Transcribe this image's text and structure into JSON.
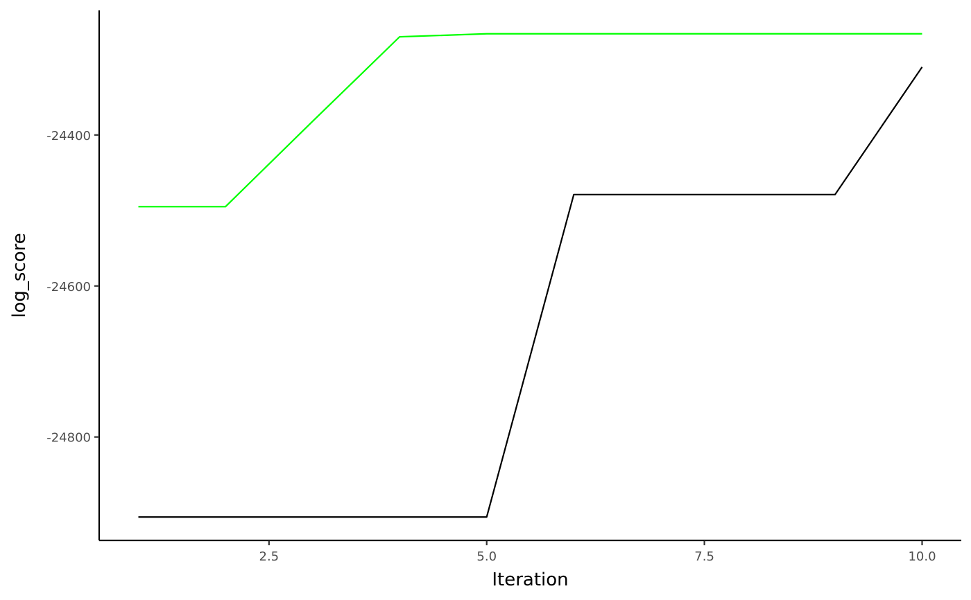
{
  "chart_data": {
    "type": "line",
    "title": "",
    "xlabel": "Iteration",
    "ylabel": "log_score",
    "xlim": [
      0.55,
      10.45
    ],
    "ylim": [
      -24937,
      -24235
    ],
    "x_ticks": [
      2.5,
      5.0,
      7.5,
      10.0
    ],
    "x_tick_labels": [
      "2.5",
      "5.0",
      "7.5",
      "10.0"
    ],
    "y_ticks": [
      -24800,
      -24600,
      -24400
    ],
    "y_tick_labels": [
      "-24800",
      "-24600",
      "-24400"
    ],
    "grid": false,
    "legend": "none",
    "series": [
      {
        "color": "#00ff00",
        "x": [
          1,
          2,
          3,
          4,
          5,
          6,
          7,
          8,
          9,
          10
        ],
        "y": [
          -24495,
          -24495,
          -24382,
          -24270,
          -24266,
          -24266,
          -24266,
          -24266,
          -24266,
          -24266
        ]
      },
      {
        "color": "#000000",
        "x": [
          1,
          2,
          3,
          4,
          5,
          6,
          7,
          8,
          9,
          10
        ],
        "y": [
          -24906,
          -24906,
          -24906,
          -24906,
          -24906,
          -24479,
          -24479,
          -24479,
          -24479,
          -24310
        ]
      }
    ]
  }
}
